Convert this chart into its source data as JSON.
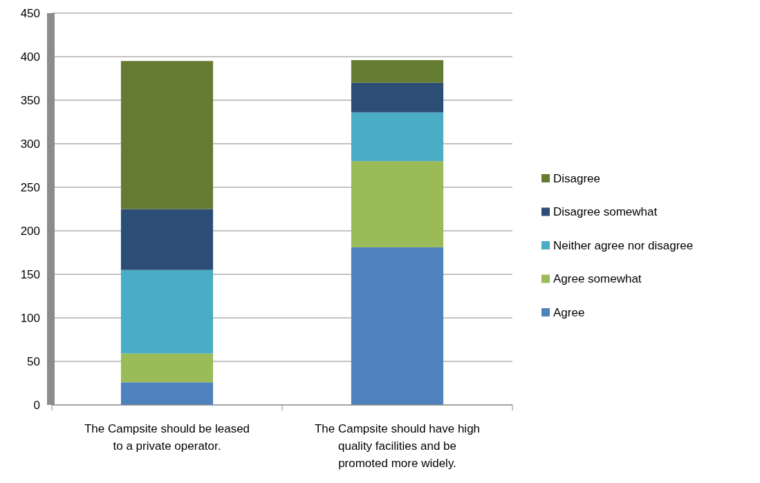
{
  "chart_data": {
    "type": "bar",
    "stacked": true,
    "categories": [
      "The Campsite should be leased to a private operator.",
      "The Campsite should have high quality facilities and be promoted more widely."
    ],
    "series": [
      {
        "name": "Agree",
        "color": "#4f81bd",
        "values": [
          26,
          181
        ]
      },
      {
        "name": "Agree somewhat",
        "color": "#9bbb59",
        "values": [
          33,
          99
        ]
      },
      {
        "name": "Neither agree nor disagree",
        "color": "#4bacc6",
        "values": [
          96,
          56
        ]
      },
      {
        "name": "Disagree somewhat",
        "color": "#2c4d75",
        "values": [
          70,
          34
        ]
      },
      {
        "name": "Disagree",
        "color": "#647b32",
        "values": [
          170,
          26
        ]
      }
    ],
    "ylim": [
      0,
      450
    ],
    "yticks": [
      0,
      50,
      100,
      150,
      200,
      250,
      300,
      350,
      400,
      450
    ],
    "grid": "y",
    "legend": "right"
  }
}
